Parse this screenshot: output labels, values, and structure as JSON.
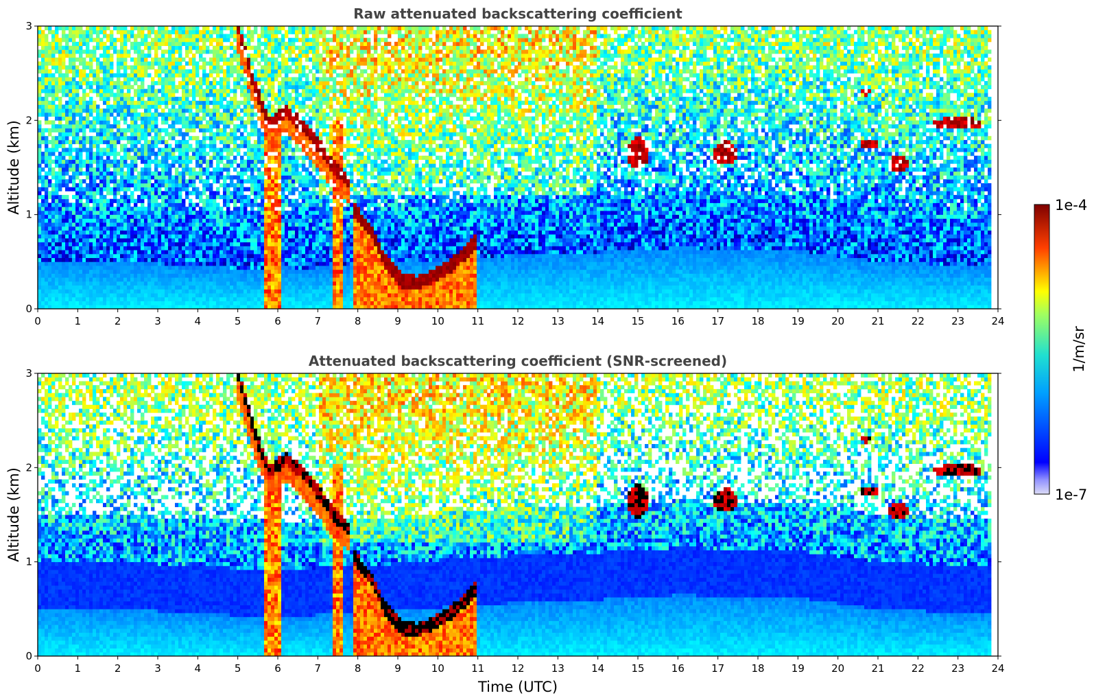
{
  "chart_data": [
    {
      "type": "heatmap",
      "title": "Raw attenuated backscattering coefficient",
      "xlabel": "",
      "ylabel": "Altitude (km)",
      "xlim": [
        0,
        24
      ],
      "ylim": [
        0,
        3
      ],
      "xticks": [
        "0",
        "1",
        "2",
        "3",
        "4",
        "5",
        "6",
        "7",
        "8",
        "9",
        "10",
        "11",
        "12",
        "13",
        "14",
        "15",
        "16",
        "17",
        "18",
        "19",
        "20",
        "21",
        "22",
        "23",
        "24"
      ],
      "yticks": [
        "0",
        "1",
        "2",
        "3"
      ],
      "screened": false,
      "features": [
        {
          "kind": "boundary-layer",
          "points": [
            [
              0,
              0.52
            ],
            [
              3,
              0.48
            ],
            [
              5.5,
              0.42
            ],
            [
              8,
              0.45
            ],
            [
              11,
              0.55
            ],
            [
              14,
              0.6
            ],
            [
              16,
              0.65
            ],
            [
              19,
              0.62
            ],
            [
              21,
              0.5
            ],
            [
              23.8,
              0.45
            ]
          ]
        },
        {
          "kind": "descending-cloud",
          "points": [
            [
              5.0,
              3.0
            ],
            [
              5.4,
              2.4
            ],
            [
              5.8,
              1.95
            ],
            [
              6.2,
              2.1
            ],
            [
              6.6,
              1.95
            ],
            [
              7.0,
              1.75
            ],
            [
              7.4,
              1.5
            ],
            [
              7.8,
              1.35
            ]
          ]
        },
        {
          "kind": "rain-fall",
          "times": [
            5.8,
            6.0,
            7.5
          ]
        },
        {
          "kind": "bowl-cloud",
          "points": [
            [
              7.9,
              1.05
            ],
            [
              8.3,
              0.85
            ],
            [
              8.7,
              0.5
            ],
            [
              9.1,
              0.3
            ],
            [
              9.5,
              0.28
            ],
            [
              9.9,
              0.35
            ],
            [
              10.3,
              0.45
            ],
            [
              10.7,
              0.6
            ],
            [
              11.0,
              0.75
            ]
          ]
        },
        {
          "kind": "cloud-patch",
          "center": [
            15.0,
            1.65
          ],
          "size": [
            0.5,
            0.35
          ]
        },
        {
          "kind": "cloud-patch",
          "center": [
            17.2,
            1.65
          ],
          "size": [
            0.6,
            0.25
          ]
        },
        {
          "kind": "cloud-patch",
          "center": [
            20.8,
            1.75
          ],
          "size": [
            0.5,
            0.12
          ]
        },
        {
          "kind": "cloud-patch",
          "center": [
            21.5,
            1.55
          ],
          "size": [
            0.5,
            0.18
          ]
        },
        {
          "kind": "cloud-patch",
          "center": [
            23.0,
            1.97
          ],
          "size": [
            1.2,
            0.14
          ]
        },
        {
          "kind": "cloud-patch",
          "center": [
            20.7,
            2.3
          ],
          "size": [
            0.2,
            0.08
          ]
        }
      ]
    },
    {
      "type": "heatmap",
      "title": "Attenuated backscattering coefficient (SNR-screened)",
      "xlabel": "Time (UTC)",
      "ylabel": "Altitude (km)",
      "xlim": [
        0,
        24
      ],
      "ylim": [
        0,
        3
      ],
      "xticks": [
        "0",
        "1",
        "2",
        "3",
        "4",
        "5",
        "6",
        "7",
        "8",
        "9",
        "10",
        "11",
        "12",
        "13",
        "14",
        "15",
        "16",
        "17",
        "18",
        "19",
        "20",
        "21",
        "22",
        "23",
        "24"
      ],
      "yticks": [
        "0",
        "1",
        "2",
        "3"
      ],
      "screened": true
    }
  ],
  "colorbar": {
    "label": "1/m/sr",
    "max_label": "1e-4",
    "min_label": "1e-7",
    "colormap": "jet",
    "colors": [
      "#e8e8f8",
      "#0000ff",
      "#00c0ff",
      "#ffff00",
      "#ff4000",
      "#7f0000"
    ]
  }
}
